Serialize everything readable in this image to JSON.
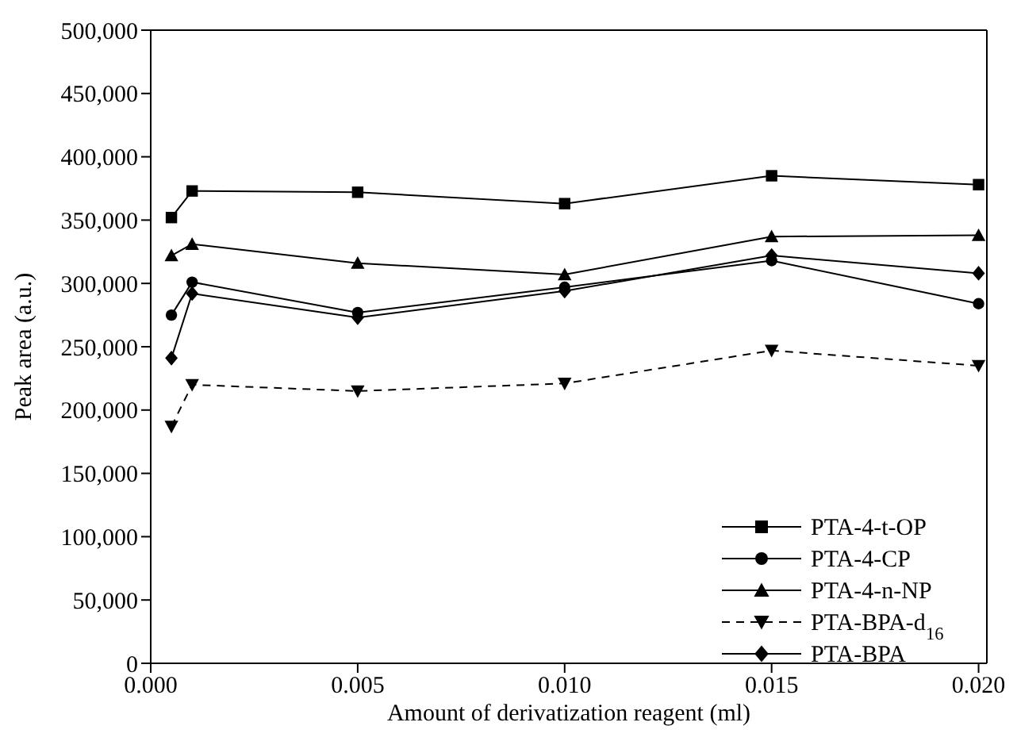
{
  "chart_data": {
    "type": "line",
    "xlabel": "Amount of derivatization reagent (ml)",
    "ylabel": "Peak area (a.u.)",
    "x": [
      0.0005,
      0.001,
      0.005,
      0.01,
      0.015,
      0.02
    ],
    "xlim": [
      0,
      0.0202
    ],
    "xticks": [
      {
        "value": 0,
        "label": "0.000"
      },
      {
        "value": 0.005,
        "label": "0.005"
      },
      {
        "value": 0.01,
        "label": "0.010"
      },
      {
        "value": 0.015,
        "label": "0.015"
      },
      {
        "value": 0.02,
        "label": "0.020"
      }
    ],
    "ylim": [
      0,
      500000
    ],
    "yticks": [
      {
        "value": 0,
        "label": "0"
      },
      {
        "value": 50000,
        "label": "50,000"
      },
      {
        "value": 100000,
        "label": "100,000"
      },
      {
        "value": 150000,
        "label": "150,000"
      },
      {
        "value": 200000,
        "label": "200,000"
      },
      {
        "value": 250000,
        "label": "250,000"
      },
      {
        "value": 300000,
        "label": "300,000"
      },
      {
        "value": 350000,
        "label": "350,000"
      },
      {
        "value": 400000,
        "label": "400,000"
      },
      {
        "value": 450000,
        "label": "450,000"
      },
      {
        "value": 500000,
        "label": "500,000"
      }
    ],
    "grid": false,
    "legend": "bottom right",
    "series": [
      {
        "name": "PTA-4-t-OP",
        "color": "#000000",
        "marker": "square",
        "line_style": "solid",
        "values": [
          352000,
          373000,
          372000,
          363000,
          385000,
          378000
        ]
      },
      {
        "name": "PTA-4-CP",
        "color": "#000000",
        "marker": "circle",
        "line_style": "solid",
        "values": [
          275000,
          301000,
          277000,
          297000,
          318000,
          284000
        ]
      },
      {
        "name": "PTA-4-n-NP",
        "color": "#000000",
        "marker": "triangle",
        "line_style": "solid",
        "values": [
          322000,
          331000,
          316000,
          307000,
          337000,
          338000
        ]
      },
      {
        "name": "PTA-BPA-d$_{16}$",
        "color": "#000000",
        "marker": "triangle-down",
        "line_style": "dashed",
        "values": [
          187000,
          220000,
          215000,
          221000,
          247000,
          235000
        ]
      },
      {
        "name": "PTA-BPA",
        "color": "#000000",
        "marker": "diamond",
        "line_style": "solid",
        "values": [
          241000,
          292000,
          273000,
          294000,
          322000,
          308000
        ]
      }
    ]
  }
}
